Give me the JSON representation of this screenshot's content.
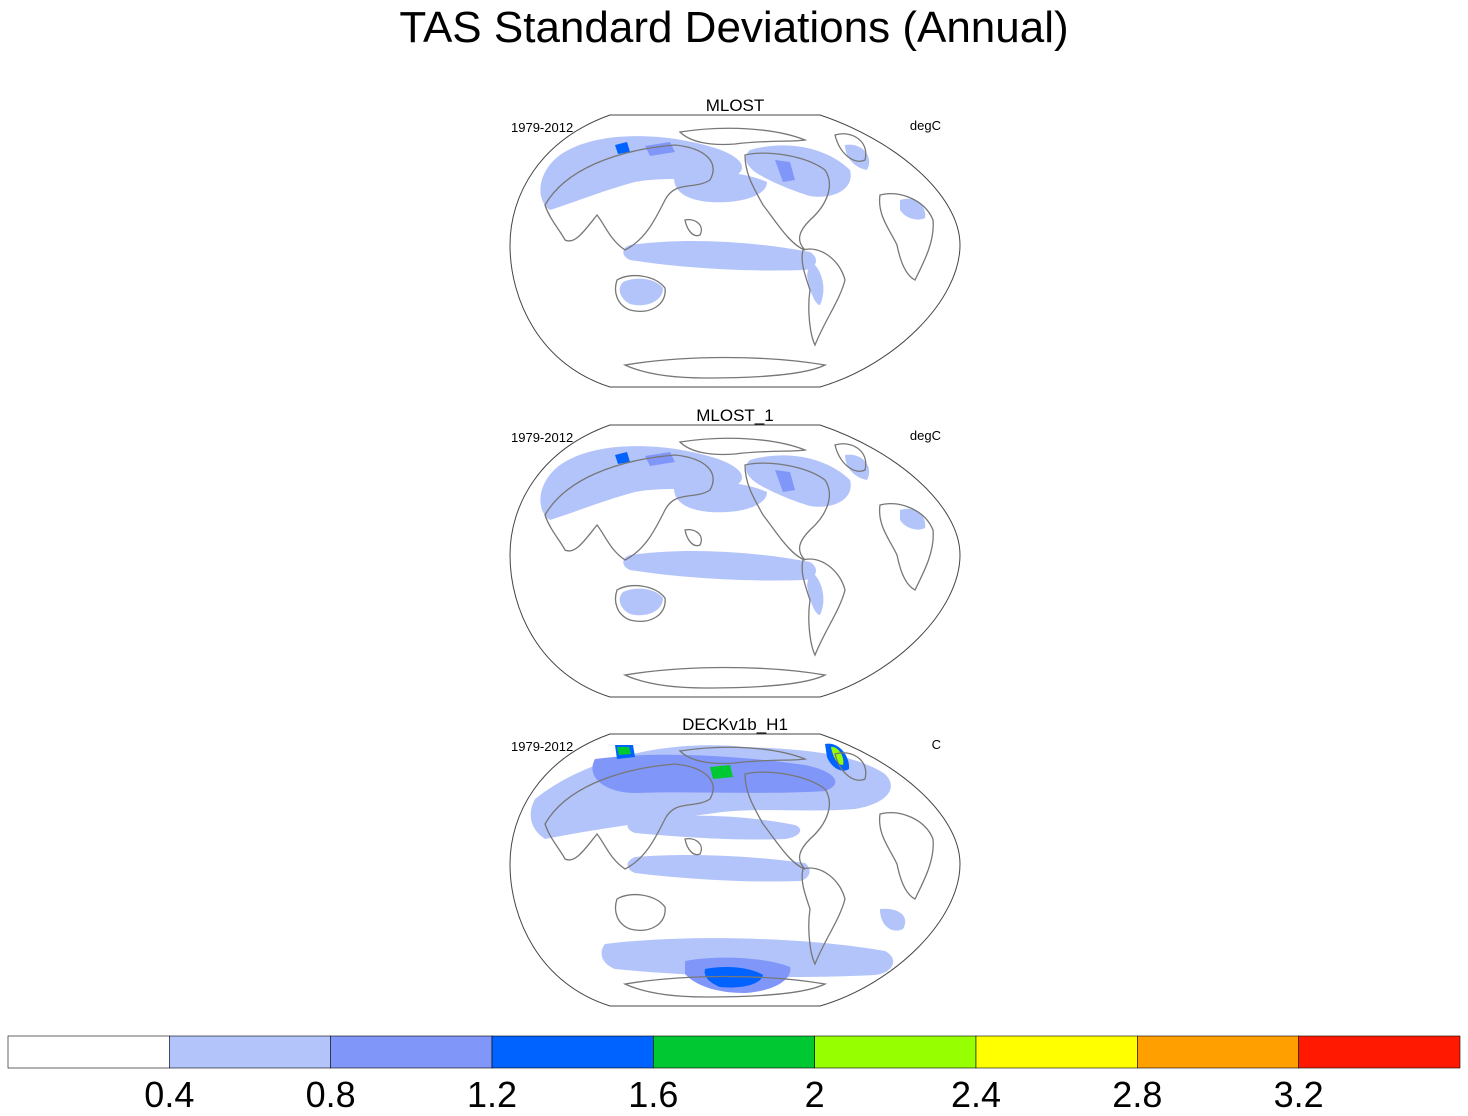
{
  "title": "TAS Standard Deviations (Annual)",
  "panels": [
    {
      "name": "MLOST",
      "period": "1979-2012",
      "units": "degC"
    },
    {
      "name": "MLOST_1",
      "period": "1979-2012",
      "units": "degC"
    },
    {
      "name": "DECKv1b_H1",
      "period": "1979-2012",
      "units": "C"
    }
  ],
  "colorbar": {
    "labels": [
      "0.4",
      "0.8",
      "1.2",
      "1.6",
      "2",
      "2.4",
      "2.8",
      "3.2"
    ],
    "colors": [
      "#ffffff",
      "#b3c4fb",
      "#8196f9",
      "#0062ff",
      "#00c832",
      "#96ff00",
      "#ffff00",
      "#ffa000",
      "#ff1900"
    ]
  },
  "colors": {
    "coastline": "#777777",
    "frame": "#444444"
  }
}
